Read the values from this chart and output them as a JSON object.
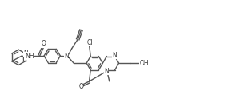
{
  "figsize": [
    2.94,
    1.29
  ],
  "dpi": 100,
  "line_color": "#555555",
  "line_width": 1.0,
  "font_size": 5.5,
  "xlim": [
    0,
    294
  ],
  "ylim": [
    0,
    129
  ]
}
